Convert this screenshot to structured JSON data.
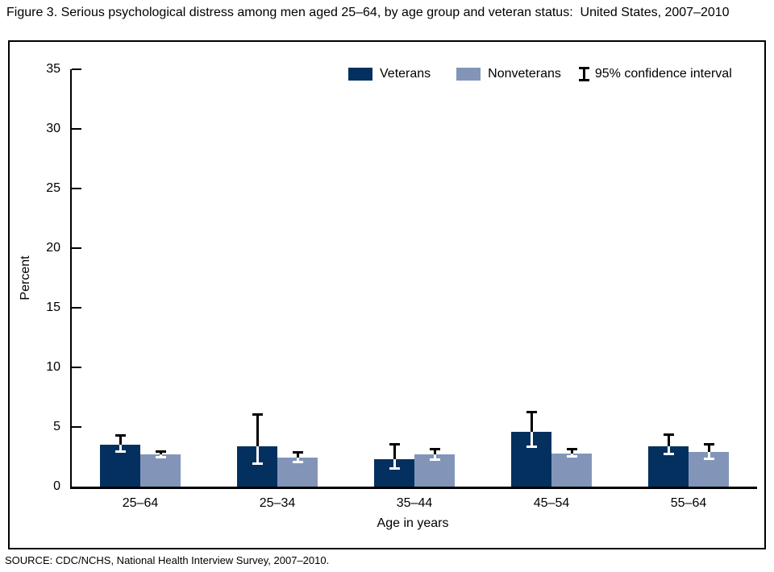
{
  "page": {
    "title": "Figure 3. Serious psychological distress among men aged 25–64, by age group and veteran status:  United States, 2007–2010",
    "source": "SOURCE: CDC/NCHS, National Health Interview Survey, 2007–2010."
  },
  "legend": {
    "veterans_label": "Veterans",
    "nonveterans_label": "Nonveterans",
    "ci_label": "95% confidence interval"
  },
  "colors": {
    "veterans": "#03305f",
    "nonveterans": "#8295b9",
    "error_bar": "#000000",
    "error_bar_inside": "#ffffff",
    "axis": "#000000"
  },
  "chart_data": {
    "type": "bar",
    "title": "Serious psychological distress among men aged 25–64, by age group and veteran status",
    "categories": [
      "25–64",
      "25–34",
      "35–44",
      "45–54",
      "55–64"
    ],
    "xlabel": "Age in years",
    "ylabel": "Percent",
    "ylim": [
      0,
      35
    ],
    "yticks": [
      0,
      5,
      10,
      15,
      20,
      25,
      30,
      35
    ],
    "grid": false,
    "legend_position": "top-right-inside",
    "error_bars": "95% confidence interval",
    "series": [
      {
        "name": "Veterans",
        "values": [
          3.5,
          3.4,
          2.3,
          4.6,
          3.4
        ],
        "ci_low": [
          2.9,
          1.9,
          1.5,
          3.3,
          2.7
        ],
        "ci_high": [
          4.3,
          6.1,
          3.6,
          6.3,
          4.4
        ]
      },
      {
        "name": "Nonveterans",
        "values": [
          2.7,
          2.4,
          2.7,
          2.8,
          2.9
        ],
        "ci_low": [
          2.4,
          2.0,
          2.2,
          2.5,
          2.3
        ],
        "ci_high": [
          3.0,
          2.9,
          3.2,
          3.2,
          3.6
        ]
      }
    ]
  }
}
